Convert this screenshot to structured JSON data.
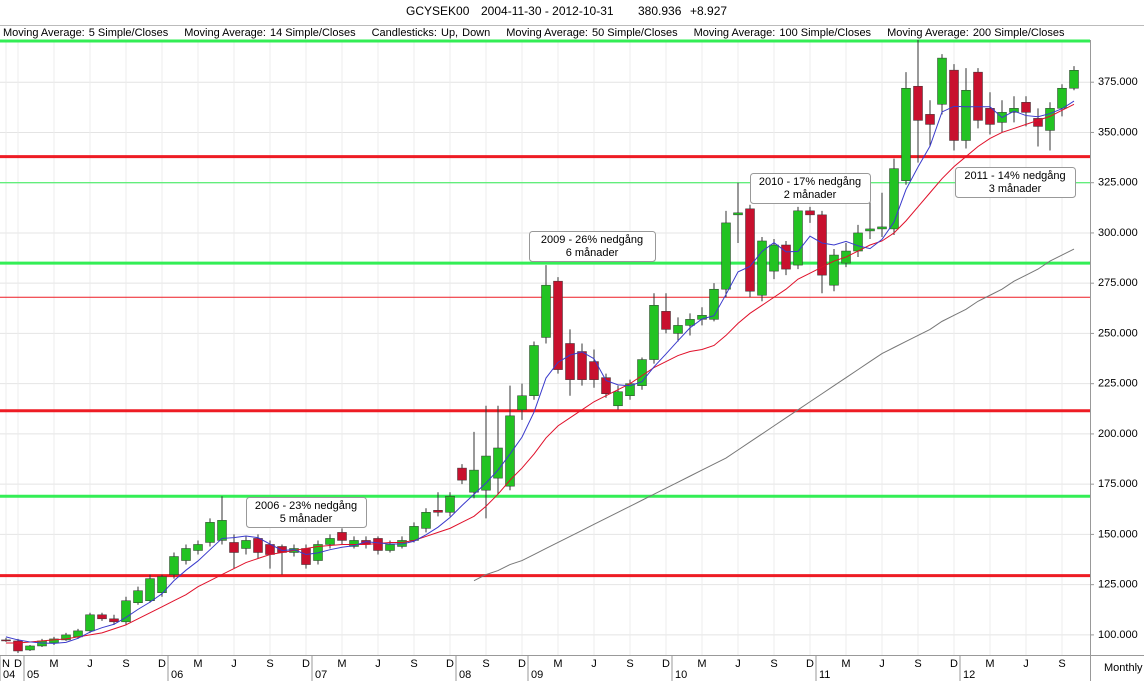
{
  "header": {
    "symbol": "GCYSEK00",
    "date_range": "2004-11-30 - 2012-10-31",
    "last": "380.936",
    "change": "+8.927"
  },
  "chart_data": {
    "type": "candlestick",
    "period": "Monthly",
    "legend_prefix": "Moving Average:",
    "categories": [
      "N",
      "D",
      null,
      null,
      "M",
      null,
      null,
      "J",
      null,
      null,
      "S",
      null,
      null,
      "D",
      null,
      null,
      "M",
      null,
      null,
      "J",
      null,
      null,
      "S",
      null,
      null,
      "D",
      null,
      null,
      "M",
      null,
      null,
      "J",
      null,
      null,
      "S",
      null,
      null,
      "D",
      null,
      null,
      "S",
      null,
      null,
      "D",
      null,
      null,
      "M",
      null,
      null,
      "J",
      null,
      null,
      "S",
      null,
      null,
      "D",
      null,
      null,
      "M",
      null,
      null,
      "J",
      null,
      null,
      "S",
      null,
      null,
      "D",
      null,
      null,
      "M",
      null,
      null,
      "J",
      null,
      null,
      "S",
      null,
      null,
      "D",
      null,
      null,
      "M",
      null,
      null,
      "J",
      null,
      null,
      "S",
      null
    ],
    "year_labels": [
      "04",
      null,
      "05",
      null,
      null,
      null,
      null,
      null,
      null,
      null,
      null,
      null,
      null,
      null,
      "06",
      null,
      null,
      null,
      null,
      null,
      null,
      null,
      null,
      null,
      null,
      null,
      "07",
      null,
      null,
      null,
      null,
      null,
      null,
      null,
      null,
      null,
      null,
      null,
      "08",
      null,
      null,
      null,
      null,
      null,
      "09",
      null,
      null,
      null,
      null,
      null,
      null,
      null,
      null,
      null,
      null,
      null,
      "10",
      null,
      null,
      null,
      null,
      null,
      null,
      null,
      null,
      null,
      null,
      null,
      "11",
      null,
      null,
      null,
      null,
      null,
      null,
      null,
      null,
      null,
      null,
      null,
      "12",
      null,
      null,
      null,
      null,
      null,
      null,
      null,
      null,
      null
    ],
    "candles": {
      "name": "Candlesticks:",
      "up_label": "Up,",
      "down_label": "Down",
      "up_color": "#22c322",
      "down_color": "#c8102e",
      "open": [
        97.5,
        97,
        92.5,
        94.5,
        96,
        97.5,
        99,
        102,
        110,
        108,
        106.5,
        116,
        117,
        121,
        130,
        137,
        142,
        146,
        147,
        146,
        143,
        148,
        145,
        144,
        141,
        143,
        137,
        145,
        151,
        144,
        147,
        148,
        142,
        144,
        147,
        153,
        162,
        161,
        183,
        171,
        172,
        178,
        174,
        212,
        219,
        248,
        276,
        245,
        241,
        236,
        228,
        214,
        219,
        224,
        237,
        261,
        250,
        254,
        257,
        257,
        272,
        309,
        312,
        269,
        281,
        294,
        284,
        311,
        309,
        274,
        285,
        291,
        301,
        302,
        302,
        326,
        373,
        359,
        364,
        381,
        346,
        380,
        362,
        355,
        360,
        365,
        357,
        351,
        362,
        372
      ],
      "high": [
        98.5,
        98,
        95,
        98,
        99,
        101,
        103,
        111,
        111,
        110,
        119,
        124,
        130,
        130,
        141,
        145,
        147,
        158,
        169,
        150,
        149,
        150,
        147,
        145,
        145,
        145,
        147,
        150,
        153,
        149,
        149,
        149,
        147,
        149,
        156,
        163,
        171,
        171,
        185,
        201,
        214,
        214,
        224,
        225,
        246,
        284,
        278,
        252,
        245,
        242,
        230,
        224,
        227,
        238,
        270,
        270,
        258,
        260,
        263,
        275,
        311,
        325,
        314,
        298,
        297,
        296,
        313,
        313,
        311,
        292,
        295,
        304,
        316,
        320,
        337,
        380,
        396,
        366,
        389,
        384,
        382,
        382,
        370,
        366,
        368,
        368,
        362,
        365,
        374,
        383
      ],
      "low": [
        96.5,
        91,
        92,
        94,
        95,
        97,
        98,
        101,
        107,
        105,
        105,
        115,
        116,
        119,
        128,
        135,
        140,
        144,
        145,
        133,
        140,
        138,
        133,
        130,
        139,
        133,
        135,
        143,
        145,
        143,
        143,
        140,
        141,
        143,
        146,
        151,
        159,
        159,
        175,
        168,
        158,
        170,
        172,
        207,
        217,
        245,
        230,
        219,
        224,
        223,
        218,
        212,
        217,
        222,
        235,
        250,
        246,
        249,
        254,
        256,
        268,
        295,
        268,
        266,
        277,
        279,
        282,
        305,
        270,
        271,
        283,
        288,
        297,
        298,
        299,
        324,
        335,
        343,
        359,
        341,
        342,
        352,
        349,
        350,
        355,
        353,
        343,
        341,
        358,
        371
      ],
      "close": [
        97.3,
        92,
        94.5,
        97,
        98,
        100,
        102,
        110,
        108,
        106.5,
        117,
        122,
        128,
        129,
        139,
        143,
        145,
        156,
        157,
        141,
        147,
        141,
        140,
        141,
        143,
        135,
        145,
        148,
        147,
        147,
        145,
        142,
        145,
        147,
        154,
        161,
        161,
        169,
        177,
        182,
        189,
        193,
        209,
        219,
        244,
        274,
        232,
        227,
        227,
        227,
        220,
        221,
        225,
        237,
        264,
        252,
        254,
        257,
        259,
        272,
        305,
        310,
        271,
        296,
        294,
        282,
        311,
        309,
        279,
        289,
        291,
        300,
        302,
        303,
        332,
        372,
        356,
        354,
        387,
        346,
        371,
        356,
        354,
        360,
        362,
        360,
        353,
        362,
        372,
        380.936
      ]
    },
    "series": [
      {
        "name": "5 Simple/Closes",
        "color": "#3a3acc",
        "values": [
          99,
          97.5,
          96.5,
          96,
          95.8,
          96.3,
          98.3,
          101.4,
          103.6,
          105.3,
          108.7,
          112.7,
          116.3,
          120.5,
          127,
          132.2,
          136.8,
          142.4,
          148,
          148.4,
          149.2,
          148.4,
          145.2,
          142,
          142.4,
          140,
          140.8,
          142.4,
          143.6,
          144.4,
          146.4,
          145.8,
          145.2,
          145.2,
          146.6,
          149.8,
          153.6,
          158.4,
          164.4,
          170,
          175.6,
          182,
          190,
          198.4,
          210.8,
          227.8,
          235.6,
          239.2,
          240.8,
          237.4,
          226.6,
          224.4,
          224,
          226,
          233.4,
          239.8,
          246.4,
          252.8,
          257.2,
          258.8,
          269.4,
          280.6,
          283.4,
          290.8,
          295.2,
          290.6,
          290.8,
          298.4,
          295,
          294,
          295.8,
          293.6,
          292.2,
          296.8,
          305.4,
          321.6,
          332.8,
          343.2,
          360.2,
          363,
          362.8,
          362.8,
          362.8,
          357.4,
          360.6,
          358.4,
          357.8,
          359.4,
          361.8,
          365.6
        ]
      },
      {
        "name": "14 Simple/Closes",
        "color": "#e0102a",
        "values": [
          96,
          96,
          96.5,
          97,
          97.5,
          98,
          99,
          100,
          101,
          103,
          105,
          108,
          111,
          114,
          117,
          120,
          124,
          127,
          130,
          133,
          136,
          138,
          140,
          141,
          142,
          143,
          144,
          144.5,
          145,
          145,
          145,
          145.5,
          146,
          146,
          147,
          149,
          151,
          153,
          156,
          159,
          164,
          170,
          177,
          183,
          190,
          198,
          204,
          208,
          212,
          216,
          219,
          222,
          225,
          229,
          233,
          236,
          239,
          241,
          242,
          244,
          249,
          255,
          260,
          264,
          268,
          272,
          277,
          280,
          283,
          286,
          288,
          291,
          294,
          296,
          300,
          306,
          313,
          320,
          327,
          333,
          338,
          343,
          347,
          350,
          352,
          354,
          356,
          358,
          361,
          364
        ]
      },
      {
        "name": "50 Simple/Closes",
        "color": "#777777",
        "values": [
          null,
          null,
          null,
          null,
          null,
          null,
          null,
          null,
          null,
          null,
          null,
          null,
          null,
          null,
          null,
          null,
          null,
          null,
          null,
          null,
          null,
          null,
          null,
          null,
          null,
          null,
          null,
          null,
          null,
          null,
          null,
          null,
          null,
          null,
          null,
          null,
          null,
          null,
          null,
          127,
          130,
          132,
          135,
          137,
          140,
          143,
          146,
          149,
          152,
          155,
          158,
          161,
          164,
          167,
          170,
          173,
          176,
          179,
          182,
          185,
          188,
          192,
          196,
          200,
          204,
          208,
          212,
          216,
          220,
          224,
          228,
          232,
          236,
          240,
          243,
          246,
          249,
          252,
          256,
          259,
          262,
          266,
          269,
          272,
          276,
          279,
          282,
          286,
          289,
          292
        ]
      },
      {
        "name": "100 Simple/Closes",
        "color": "#b0b0b0"
      },
      {
        "name": "200 Simple/Closes",
        "color": "#d8d8d8"
      }
    ],
    "levels": [
      {
        "value": 395.5,
        "color": "#33ee55",
        "thick": true
      },
      {
        "value": 338,
        "color": "#ee1c24",
        "thick": true
      },
      {
        "value": 325,
        "color": "#33ee55",
        "thick": false
      },
      {
        "value": 285,
        "color": "#33ee55",
        "thick": true
      },
      {
        "value": 268,
        "color": "#ee1c24",
        "thick": false
      },
      {
        "value": 211.5,
        "color": "#ee1c24",
        "thick": true
      },
      {
        "value": 169,
        "color": "#33ee55",
        "thick": true
      },
      {
        "value": 129.5,
        "color": "#ee1c24",
        "thick": true
      }
    ],
    "annotations": [
      {
        "lines": [
          "2006 - 23% nedgång",
          "5 månader"
        ]
      },
      {
        "lines": [
          "2009 - 26% nedgång",
          "6 månader"
        ]
      },
      {
        "lines": [
          "2010 - 17% nedgång",
          "2 månader"
        ]
      },
      {
        "lines": [
          "2011 - 14% nedgång",
          "3 månader"
        ]
      }
    ],
    "ylim": [
      90,
      396
    ],
    "yticks": [
      {
        "value": 100,
        "label": "100.000"
      },
      {
        "value": 125,
        "label": "125.000"
      },
      {
        "value": 150,
        "label": "150.000"
      },
      {
        "value": 175,
        "label": "175.000"
      },
      {
        "value": 200,
        "label": "200.000"
      },
      {
        "value": 225,
        "label": "225.000"
      },
      {
        "value": 250,
        "label": "250.000"
      },
      {
        "value": 275,
        "label": "275.000"
      },
      {
        "value": 300,
        "label": "300.000"
      },
      {
        "value": 325,
        "label": "325.000"
      },
      {
        "value": 350,
        "label": "350.000"
      },
      {
        "value": 375,
        "label": "375.000"
      }
    ],
    "grid": true
  }
}
